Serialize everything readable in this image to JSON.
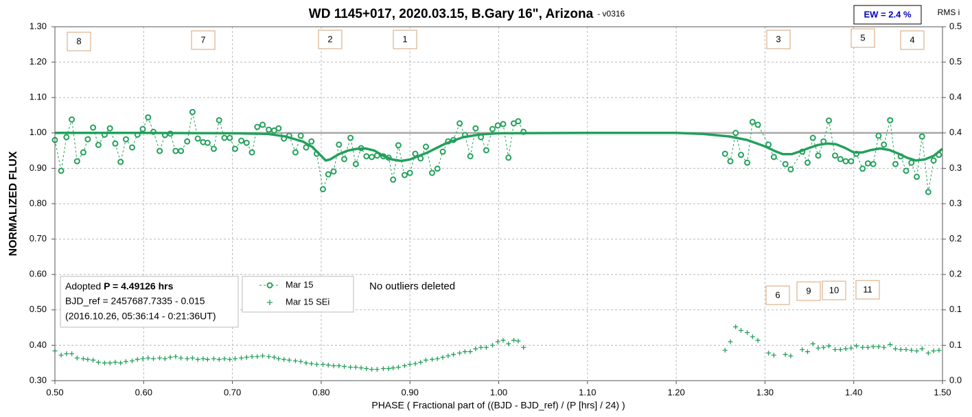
{
  "chart_data": {
    "type": "line",
    "title": "WD 1145+017, 2020.03.15, B.Gary 16\", Arizona",
    "subtitle": "- v0316",
    "x_label": "PHASE ( Fractional part of ((BJD - BJD_ref) / (P [hrs] / 24) )",
    "y_label": "NORMALIZED FLUX",
    "y2_label": "RMS i",
    "ew_label": "EW = 2.4 %",
    "info": {
      "prefix": "Adopted ",
      "period": "P = 4.49126 hrs",
      "ref": "BJD_ref = 2457687.7335 - 0.015",
      "date": "(2016.10.26, 05:36:14 - 0:21:36UT)"
    },
    "note": "No outliers deleted",
    "annotations": [
      "8",
      "7",
      "2",
      "1",
      "3",
      "5",
      "4",
      "6",
      "9",
      "10",
      "11"
    ],
    "hline": 1,
    "xlim": [
      0.5,
      1.5
    ],
    "xticks": [
      {
        "value": 0.5,
        "label": "0.50"
      },
      {
        "value": 0.6,
        "label": "0.60"
      },
      {
        "value": 0.7,
        "label": "0.70"
      },
      {
        "value": 0.8,
        "label": "0.80"
      },
      {
        "value": 0.9,
        "label": "0.90"
      },
      {
        "value": 1.0,
        "label": "1.00"
      },
      {
        "value": 1.1,
        "label": "1.10"
      },
      {
        "value": 1.2,
        "label": "1.20"
      },
      {
        "value": 1.3,
        "label": "1.30"
      },
      {
        "value": 1.4,
        "label": "1.40"
      },
      {
        "value": 1.5,
        "label": "1.50"
      }
    ],
    "ylim": [
      0.3,
      1.3
    ],
    "yticks": [
      {
        "value": 0.3,
        "label": "0.30"
      },
      {
        "value": 0.4,
        "label": "0.40"
      },
      {
        "value": 0.5,
        "label": "0.50"
      },
      {
        "value": 0.6,
        "label": "0.60"
      },
      {
        "value": 0.7,
        "label": "0.70"
      },
      {
        "value": 0.8,
        "label": "0.80"
      },
      {
        "value": 0.9,
        "label": "0.90"
      },
      {
        "value": 1.0,
        "label": "1.00"
      },
      {
        "value": 1.1,
        "label": "1.10"
      },
      {
        "value": 1.2,
        "label": "1.20"
      },
      {
        "value": 1.3,
        "label": "1.30"
      }
    ],
    "y2lim": [
      0,
      0.5
    ],
    "y2ticks": [
      {
        "value": 0,
        "label": "0.0"
      },
      {
        "value": 0.05,
        "label": "0.1"
      },
      {
        "value": 0.1,
        "label": "0.1"
      },
      {
        "value": 0.15,
        "label": "0.2"
      },
      {
        "value": 0.2,
        "label": "0.2"
      },
      {
        "value": 0.25,
        "label": "0.3"
      },
      {
        "value": 0.3,
        "label": "0.3"
      },
      {
        "value": 0.35,
        "label": "0.4"
      },
      {
        "value": 0.4,
        "label": "0.4"
      },
      {
        "value": 0.45,
        "label": "0.5"
      },
      {
        "value": 0.5,
        "label": "0.5"
      }
    ],
    "grid": true,
    "series": [
      {
        "name": "Mar 15",
        "color": "#22a05a",
        "marker": "circle",
        "linestyle": "dashed",
        "x": [
          0.5,
          0.507,
          0.513,
          0.519,
          0.525,
          0.532,
          0.537,
          0.543,
          0.549,
          0.556,
          0.562,
          0.568,
          0.574,
          0.58,
          0.587,
          0.593,
          0.599,
          0.605,
          0.611,
          0.618,
          0.624,
          0.63,
          0.636,
          0.642,
          0.649,
          0.655,
          0.661,
          0.667,
          0.672,
          0.679,
          0.685,
          0.691,
          0.697,
          0.703,
          0.71,
          0.716,
          0.722,
          0.728,
          0.734,
          0.741,
          0.747,
          0.752,
          0.758,
          0.764,
          0.771,
          0.777,
          0.783,
          0.789,
          0.795,
          0.802,
          0.808,
          0.814,
          0.82,
          0.826,
          0.833,
          0.839,
          0.845,
          0.851,
          0.857,
          0.863,
          0.87,
          0.876,
          0.881,
          0.887,
          0.894,
          0.9,
          0.906,
          0.912,
          0.918,
          0.925,
          0.931,
          0.937,
          0.943,
          0.949,
          0.956,
          0.962,
          0.968,
          0.974,
          0.98,
          0.986,
          0.993,
          0.999,
          1.005,
          1.011,
          1.017,
          1.022,
          1.028,
          null,
          1.255,
          1.261,
          1.267,
          1.273,
          1.28,
          1.286,
          1.292,
          1.304,
          1.31,
          1.323,
          1.329,
          1.342,
          1.348,
          1.354,
          1.36,
          1.366,
          1.372,
          1.379,
          1.385,
          1.391,
          1.397,
          1.403,
          1.41,
          1.416,
          1.422,
          1.428,
          1.434,
          1.441,
          1.447,
          1.453,
          1.459,
          1.465,
          1.471,
          1.477,
          1.484,
          1.49,
          1.496
        ],
        "values": [
          0.98,
          0.893,
          0.988,
          1.038,
          0.92,
          0.945,
          0.982,
          1.015,
          0.966,
          0.995,
          1.013,
          0.97,
          0.918,
          0.982,
          0.959,
          0.995,
          1.011,
          1.044,
          1.003,
          0.949,
          0.994,
          0.998,
          0.949,
          0.949,
          0.976,
          1.059,
          0.984,
          0.974,
          0.972,
          0.955,
          1.036,
          0.986,
          0.986,
          0.955,
          0.978,
          0.972,
          0.945,
          1.017,
          1.023,
          1.009,
          1.007,
          1.013,
          0.984,
          0.992,
          0.945,
          0.992,
          0.959,
          0.976,
          0.941,
          0.841,
          0.883,
          0.891,
          0.967,
          0.926,
          0.986,
          0.912,
          0.957,
          0.934,
          0.932,
          0.936,
          0.934,
          0.93,
          0.868,
          0.965,
          0.881,
          0.887,
          0.941,
          0.928,
          0.961,
          0.887,
          0.899,
          0.947,
          0.976,
          0.98,
          1.027,
          0.994,
          0.934,
          1.013,
          0.988,
          0.951,
          1.011,
          1.021,
          1.025,
          0.93,
          1.027,
          1.033,
          1.003,
          null,
          0.941,
          0.92,
          1.0,
          0.938,
          0.916,
          1.031,
          1.023,
          0.967,
          0.932,
          0.912,
          0.897,
          0.947,
          0.916,
          0.986,
          0.936,
          0.976,
          1.035,
          0.936,
          0.926,
          0.92,
          0.92,
          0.941,
          0.899,
          0.914,
          0.912,
          0.992,
          0.967,
          1.036,
          0.912,
          0.934,
          0.893,
          0.916,
          0.876,
          0.99,
          0.833,
          0.922,
          0.938
        ]
      },
      {
        "color": "#22a05a",
        "linestyle": "solid",
        "width": 3.5,
        "x": [
          0.5,
          0.6,
          0.7,
          0.74,
          0.76,
          0.78,
          0.79,
          0.8,
          0.805,
          0.81,
          0.82,
          0.83,
          0.84,
          0.85,
          0.86,
          0.87,
          0.88,
          0.89,
          0.9,
          0.92,
          0.94,
          0.96,
          0.98,
          1.0,
          1.1,
          1.2,
          1.23,
          1.26,
          1.28,
          1.3,
          1.31,
          1.32,
          1.33,
          1.34,
          1.35,
          1.36,
          1.37,
          1.38,
          1.39,
          1.4,
          1.41,
          1.42,
          1.43,
          1.44,
          1.45,
          1.46,
          1.47,
          1.48,
          1.49,
          1.5
        ],
        "values": [
          1.0,
          1.0,
          0.999,
          0.997,
          0.99,
          0.975,
          0.96,
          0.935,
          0.922,
          0.925,
          0.94,
          0.95,
          0.955,
          0.956,
          0.95,
          0.935,
          0.925,
          0.921,
          0.925,
          0.945,
          0.97,
          0.988,
          0.996,
          0.999,
          1.0,
          1.0,
          0.997,
          0.99,
          0.98,
          0.962,
          0.95,
          0.94,
          0.94,
          0.948,
          0.958,
          0.966,
          0.97,
          0.968,
          0.958,
          0.945,
          0.945,
          0.952,
          0.956,
          0.952,
          0.942,
          0.93,
          0.922,
          0.925,
          0.935,
          0.955
        ]
      },
      {
        "name": "Mar 15 SEi",
        "color": "#22a05a",
        "marker": "plus",
        "axis": "y2",
        "x": [
          0.5,
          0.507,
          0.513,
          0.519,
          0.525,
          0.532,
          0.537,
          0.543,
          0.549,
          0.556,
          0.562,
          0.568,
          0.574,
          0.58,
          0.587,
          0.593,
          0.599,
          0.605,
          0.611,
          0.618,
          0.624,
          0.63,
          0.636,
          0.642,
          0.649,
          0.655,
          0.661,
          0.667,
          0.672,
          0.679,
          0.685,
          0.691,
          0.697,
          0.703,
          0.71,
          0.716,
          0.722,
          0.728,
          0.734,
          0.741,
          0.747,
          0.752,
          0.758,
          0.764,
          0.771,
          0.777,
          0.783,
          0.789,
          0.795,
          0.802,
          0.808,
          0.814,
          0.82,
          0.826,
          0.833,
          0.839,
          0.845,
          0.851,
          0.857,
          0.863,
          0.87,
          0.876,
          0.881,
          0.887,
          0.894,
          0.9,
          0.906,
          0.912,
          0.918,
          0.925,
          0.931,
          0.937,
          0.943,
          0.949,
          0.956,
          0.962,
          0.968,
          0.974,
          0.98,
          0.986,
          0.993,
          0.999,
          1.005,
          1.011,
          1.017,
          1.022,
          1.028,
          1.255,
          1.261,
          1.267,
          1.273,
          1.28,
          1.286,
          1.292,
          1.304,
          1.31,
          1.323,
          1.329,
          1.342,
          1.348,
          1.354,
          1.36,
          1.366,
          1.372,
          1.379,
          1.385,
          1.391,
          1.397,
          1.403,
          1.41,
          1.416,
          1.422,
          1.428,
          1.434,
          1.441,
          1.447,
          1.453,
          1.459,
          1.465,
          1.471,
          1.477,
          1.484,
          1.49,
          1.496
        ],
        "values": [
          0.042,
          0.036,
          0.038,
          0.038,
          0.032,
          0.031,
          0.03,
          0.029,
          0.026,
          0.025,
          0.025,
          0.026,
          0.025,
          0.027,
          0.028,
          0.03,
          0.031,
          0.032,
          0.031,
          0.032,
          0.031,
          0.033,
          0.034,
          0.032,
          0.031,
          0.032,
          0.03,
          0.031,
          0.03,
          0.031,
          0.03,
          0.031,
          0.03,
          0.031,
          0.032,
          0.033,
          0.034,
          0.034,
          0.035,
          0.034,
          0.033,
          0.031,
          0.03,
          0.029,
          0.028,
          0.027,
          0.025,
          0.024,
          0.023,
          0.023,
          0.022,
          0.021,
          0.021,
          0.02,
          0.019,
          0.019,
          0.018,
          0.017,
          0.016,
          0.016,
          0.017,
          0.017,
          0.018,
          0.019,
          0.021,
          0.023,
          0.024,
          0.026,
          0.029,
          0.03,
          0.031,
          0.033,
          0.035,
          0.037,
          0.039,
          0.041,
          0.041,
          0.045,
          0.047,
          0.047,
          0.05,
          0.055,
          0.057,
          0.052,
          0.057,
          0.056,
          0.047,
          0.043,
          0.055,
          0.076,
          0.071,
          0.068,
          0.062,
          0.057,
          0.039,
          0.036,
          0.037,
          0.035,
          0.044,
          0.041,
          0.052,
          0.046,
          0.047,
          0.049,
          0.044,
          0.044,
          0.045,
          0.046,
          0.049,
          0.047,
          0.047,
          0.048,
          0.048,
          0.047,
          0.051,
          0.045,
          0.044,
          0.044,
          0.043,
          0.042,
          0.045,
          0.039,
          0.042,
          0.043
        ]
      }
    ]
  }
}
